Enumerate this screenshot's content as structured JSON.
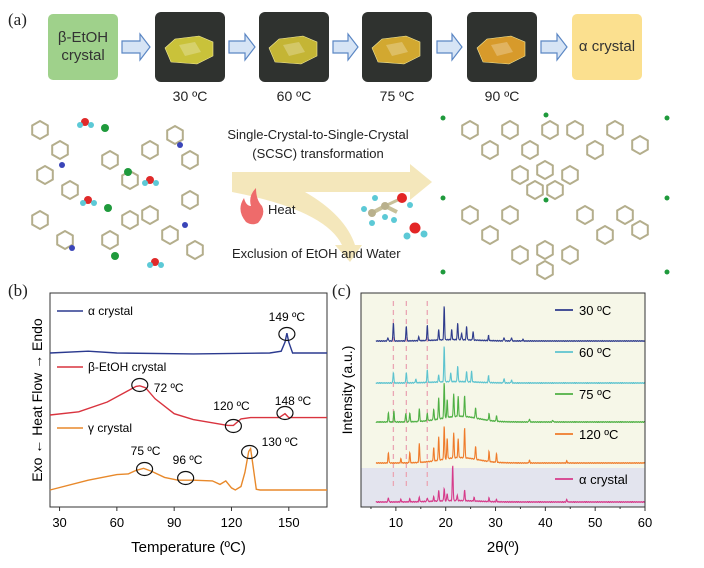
{
  "panel_a": {
    "label": "(a)",
    "start_box": "β-EtOH crystal",
    "end_box": "α crystal",
    "steps": [
      "30 ºC",
      "60 ºC",
      "75 ºC",
      "90 ºC"
    ],
    "photo_colors": [
      "#c9c23a",
      "#c4b535",
      "#d2a830",
      "#d79a2b"
    ],
    "transformation_line1": "Single-Crystal-to-Single-Crystal",
    "transformation_line2": "(SCSC) transformation",
    "heat_label": "Heat",
    "exclusion_label": "Exclusion of EtOH and Water"
  },
  "chart_data": [
    {
      "panel_label": "(b)",
      "type": "line",
      "title": "",
      "xlabel": "Temperature (ºC)",
      "ylabel": "Exo ← Heat Flow → Endo",
      "xlim": [
        25,
        170
      ],
      "xticks": [
        30,
        60,
        90,
        120,
        150
      ],
      "grid": false,
      "legend_placement": "inline",
      "series": [
        {
          "name": "α crystal",
          "color": "#2b3a8f",
          "x": [
            25,
            45,
            60,
            100,
            140,
            146,
            148,
            149,
            150,
            152,
            170
          ],
          "y": [
            0,
            0.2,
            0,
            -0.1,
            0,
            0.2,
            1.2,
            2.2,
            1.2,
            0,
            0
          ]
        },
        {
          "name": "β-EtOH crystal",
          "color": "#d9343f",
          "x": [
            25,
            40,
            55,
            65,
            70,
            72,
            75,
            80,
            90,
            100,
            110,
            118,
            121,
            125,
            130,
            145,
            148,
            150,
            155,
            170
          ],
          "y": [
            0,
            0.5,
            2,
            3.6,
            4.4,
            4.5,
            4.2,
            2.5,
            0.2,
            -0.7,
            -1.2,
            -1.6,
            -1.6,
            -0.6,
            -0.4,
            -0.4,
            0.2,
            -0.4,
            -0.4,
            -0.4
          ]
        },
        {
          "name": "γ crystal",
          "color": "#e8892b",
          "x": [
            25,
            45,
            60,
            66,
            70,
            74,
            78,
            85,
            92,
            100,
            110,
            114,
            117,
            120,
            122,
            125,
            127,
            129,
            130,
            131,
            133,
            135,
            170
          ],
          "y": [
            0,
            1.4,
            2.2,
            2.3,
            2.8,
            3.1,
            2.7,
            1.8,
            1.4,
            1.4,
            1.3,
            0.8,
            1.3,
            0.3,
            0,
            0.5,
            2.5,
            5.5,
            5.9,
            4,
            0.1,
            0,
            0
          ]
        }
      ],
      "annotations": [
        "149 ºC",
        "72 ºC",
        "120 ºC",
        "148 ºC",
        "75 ºC",
        "96 ºC",
        "130 ºC"
      ]
    },
    {
      "panel_label": "(c)",
      "type": "line",
      "title": "",
      "xlabel": "2θ(º)",
      "ylabel": "Intensity (a.u.)",
      "xlim": [
        3,
        60
      ],
      "xticks": [
        10,
        20,
        30,
        40,
        50,
        60
      ],
      "grid": false,
      "legend_placement": "right",
      "reference_lines_2theta": [
        9.5,
        12.1,
        16.3
      ],
      "series": [
        {
          "name": "30 ºC",
          "color": "#2e3b8c",
          "peaks": [
            [
              8.4,
              0.1
            ],
            [
              9.5,
              0.55
            ],
            [
              12.1,
              0.45
            ],
            [
              14.6,
              0.12
            ],
            [
              16.3,
              0.45
            ],
            [
              18.6,
              0.3
            ],
            [
              19.7,
              1.0
            ],
            [
              21.2,
              0.3
            ],
            [
              22.4,
              0.5
            ],
            [
              23.2,
              0.2
            ],
            [
              24.2,
              0.4
            ],
            [
              25.5,
              0.25
            ],
            [
              28.6,
              0.15
            ],
            [
              31.7,
              0.1
            ],
            [
              33.2,
              0.1
            ],
            [
              35.5,
              0.05
            ]
          ]
        },
        {
          "name": "60 ºC",
          "color": "#5cc3cf",
          "peaks": [
            [
              9.5,
              0.3
            ],
            [
              12.1,
              0.3
            ],
            [
              14,
              0.1
            ],
            [
              16.3,
              0.35
            ],
            [
              18.6,
              0.2
            ],
            [
              19.7,
              1.0
            ],
            [
              21,
              0.25
            ],
            [
              22.4,
              0.45
            ],
            [
              24.2,
              0.3
            ],
            [
              25.2,
              0.3
            ],
            [
              28.6,
              0.2
            ],
            [
              31.7,
              0.12
            ],
            [
              33.2,
              0.08
            ]
          ]
        },
        {
          "name": "75 ºC",
          "color": "#4fb044",
          "peaks": [
            [
              8.5,
              0.25
            ],
            [
              9.6,
              0.3
            ],
            [
              12,
              0.25
            ],
            [
              12.8,
              0.25
            ],
            [
              14.7,
              0.35
            ],
            [
              16.3,
              0.2
            ],
            [
              17.6,
              0.3
            ],
            [
              18.6,
              0.6
            ],
            [
              19.7,
              1.0
            ],
            [
              20.3,
              0.5
            ],
            [
              21.6,
              0.65
            ],
            [
              22.5,
              0.55
            ],
            [
              23.8,
              0.6
            ],
            [
              26,
              0.3
            ],
            [
              28.7,
              0.2
            ],
            [
              30.2,
              0.15
            ],
            [
              36.8,
              0.08
            ],
            [
              41.5,
              0.05
            ]
          ]
        },
        {
          "name": "120 ºC",
          "color": "#ef7b2a",
          "peaks": [
            [
              8.5,
              0.3
            ],
            [
              11,
              0.12
            ],
            [
              12.8,
              0.3
            ],
            [
              14.7,
              0.55
            ],
            [
              17.6,
              0.4
            ],
            [
              18.6,
              0.7
            ],
            [
              19.7,
              1.0
            ],
            [
              20.3,
              0.6
            ],
            [
              21.6,
              0.75
            ],
            [
              22.5,
              0.55
            ],
            [
              23.8,
              0.9
            ],
            [
              26,
              0.4
            ],
            [
              28.7,
              0.3
            ],
            [
              30.2,
              0.25
            ],
            [
              36.8,
              0.08
            ],
            [
              44.3,
              0.06
            ]
          ]
        },
        {
          "name": "α crystal",
          "color": "#d63a8a",
          "peaks": [
            [
              8.5,
              0.12
            ],
            [
              11,
              0.07
            ],
            [
              12.8,
              0.08
            ],
            [
              14.7,
              0.12
            ],
            [
              16.3,
              0.1
            ],
            [
              17.6,
              0.12
            ],
            [
              18.6,
              0.3
            ],
            [
              19.7,
              0.35
            ],
            [
              20.3,
              0.2
            ],
            [
              21.4,
              1.0
            ],
            [
              22.3,
              0.15
            ],
            [
              23.8,
              0.3
            ],
            [
              25.7,
              0.1
            ],
            [
              28.7,
              0.1
            ],
            [
              30.2,
              0.06
            ],
            [
              44.3,
              0.07
            ]
          ]
        }
      ]
    }
  ]
}
